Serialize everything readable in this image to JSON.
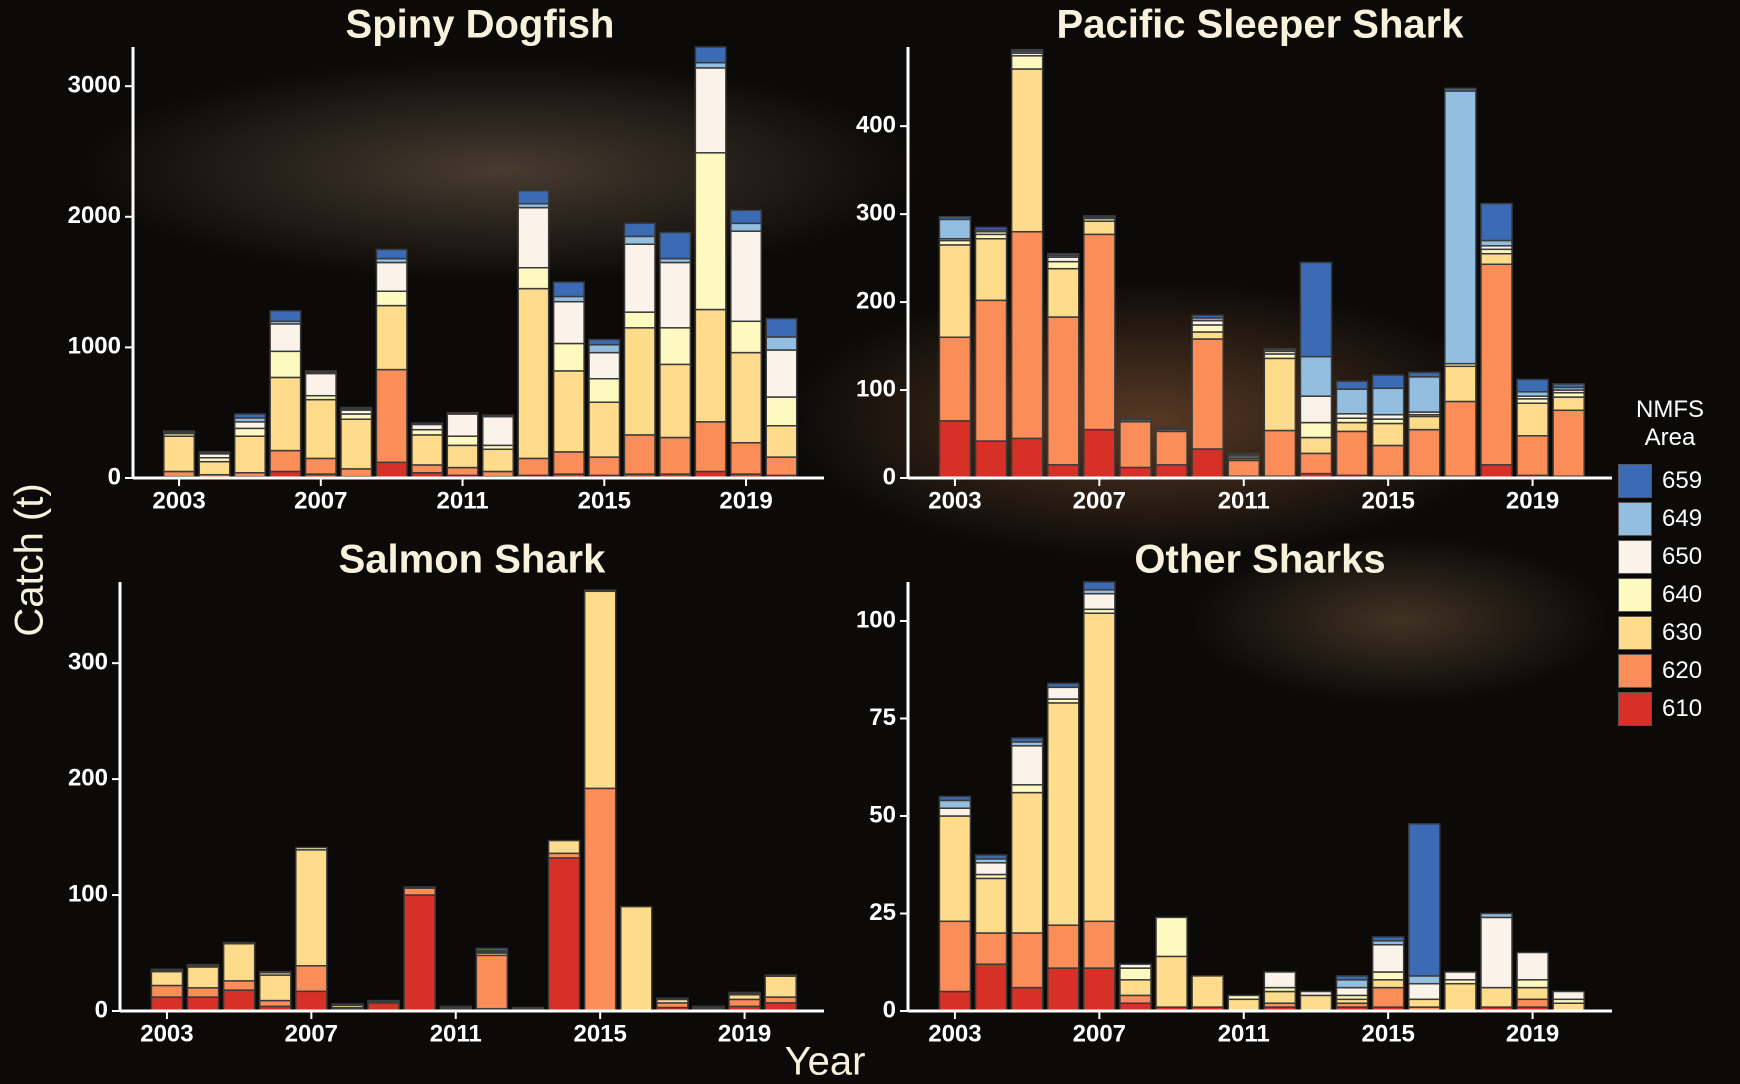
{
  "y_label": "Catch (t)",
  "x_label": "Year",
  "legend_title": "NMFS Area",
  "chart_data": [
    {
      "type": "bar",
      "stacked": true,
      "title": "Spiny Dogfish",
      "x": [
        2003,
        2004,
        2005,
        2006,
        2007,
        2008,
        2009,
        2010,
        2011,
        2012,
        2013,
        2014,
        2015,
        2016,
        2017,
        2018,
        2019,
        2020
      ],
      "xlim": [
        2001.7,
        2021.2
      ],
      "xticks": [
        2003,
        2007,
        2011,
        2015,
        2019
      ],
      "ylim": [
        0,
        3300
      ],
      "yticks": [
        0,
        1000,
        2000,
        3000
      ],
      "series": [
        {
          "name": "610",
          "color": "#d73027",
          "values": [
            10,
            5,
            10,
            50,
            30,
            10,
            120,
            40,
            20,
            10,
            20,
            30,
            20,
            30,
            30,
            50,
            30,
            20
          ]
        },
        {
          "name": "620",
          "color": "#fb8d59",
          "values": [
            40,
            20,
            30,
            160,
            120,
            60,
            710,
            60,
            60,
            40,
            130,
            170,
            140,
            300,
            280,
            380,
            240,
            140
          ]
        },
        {
          "name": "630",
          "color": "#fedc8b",
          "values": [
            270,
            100,
            280,
            560,
            450,
            380,
            490,
            230,
            170,
            170,
            1300,
            620,
            420,
            820,
            560,
            860,
            690,
            240
          ]
        },
        {
          "name": "640",
          "color": "#fef9bf",
          "values": [
            20,
            30,
            60,
            200,
            30,
            40,
            110,
            40,
            70,
            30,
            160,
            210,
            180,
            120,
            280,
            1200,
            240,
            220
          ]
        },
        {
          "name": "650",
          "color": "#fbf3ea",
          "values": [
            10,
            30,
            50,
            210,
            170,
            30,
            220,
            40,
            170,
            220,
            460,
            320,
            200,
            520,
            500,
            650,
            690,
            360
          ]
        },
        {
          "name": "649",
          "color": "#92bfe0",
          "values": [
            5,
            10,
            30,
            20,
            10,
            10,
            30,
            5,
            5,
            5,
            30,
            40,
            60,
            60,
            30,
            40,
            60,
            100
          ]
        },
        {
          "name": "659",
          "color": "#3b6bb5",
          "values": [
            5,
            5,
            30,
            80,
            10,
            10,
            70,
            5,
            5,
            5,
            100,
            110,
            40,
            100,
            200,
            120,
            100,
            140
          ]
        }
      ]
    },
    {
      "type": "bar",
      "stacked": true,
      "title": "Pacific Sleeper Shark",
      "x": [
        2003,
        2004,
        2005,
        2006,
        2007,
        2008,
        2009,
        2010,
        2011,
        2012,
        2013,
        2014,
        2015,
        2016,
        2017,
        2018,
        2019,
        2020
      ],
      "xlim": [
        2001.7,
        2021.2
      ],
      "xticks": [
        2003,
        2007,
        2011,
        2015,
        2019
      ],
      "ylim": [
        0,
        490
      ],
      "yticks": [
        0,
        100,
        200,
        300,
        400
      ],
      "series": [
        {
          "name": "610",
          "color": "#d73027",
          "values": [
            65,
            42,
            45,
            15,
            55,
            12,
            15,
            33,
            2,
            2,
            5,
            3,
            2,
            2,
            2,
            15,
            3,
            2
          ]
        },
        {
          "name": "620",
          "color": "#fb8d59",
          "values": [
            95,
            160,
            235,
            168,
            222,
            52,
            38,
            125,
            18,
            52,
            23,
            50,
            35,
            53,
            85,
            228,
            45,
            75
          ]
        },
        {
          "name": "630",
          "color": "#fedc8b",
          "values": [
            105,
            70,
            185,
            55,
            15,
            2,
            2,
            8,
            2,
            82,
            18,
            10,
            25,
            15,
            40,
            12,
            37,
            15
          ]
        },
        {
          "name": "640",
          "color": "#fef9bf",
          "values": [
            5,
            5,
            15,
            8,
            3,
            1,
            1,
            8,
            2,
            5,
            17,
            5,
            5,
            2,
            3,
            5,
            5,
            5
          ]
        },
        {
          "name": "650",
          "color": "#fbf3ea",
          "values": [
            2,
            3,
            3,
            5,
            1,
            1,
            1,
            5,
            2,
            3,
            30,
            5,
            5,
            3,
            0,
            4,
            3,
            3
          ]
        },
        {
          "name": "649",
          "color": "#92bfe0",
          "values": [
            22,
            2,
            2,
            2,
            1,
            0,
            0,
            3,
            1,
            2,
            45,
            28,
            30,
            40,
            310,
            6,
            5,
            3
          ]
        },
        {
          "name": "659",
          "color": "#3b6bb5",
          "values": [
            3,
            3,
            2,
            2,
            1,
            0,
            0,
            3,
            1,
            1,
            107,
            9,
            15,
            5,
            3,
            42,
            14,
            4
          ]
        }
      ]
    },
    {
      "type": "bar",
      "stacked": true,
      "title": "Salmon Shark",
      "x": [
        2003,
        2004,
        2005,
        2006,
        2007,
        2008,
        2009,
        2010,
        2011,
        2012,
        2013,
        2014,
        2015,
        2016,
        2017,
        2018,
        2019,
        2020
      ],
      "xlim": [
        2001.7,
        2021.2
      ],
      "xticks": [
        2003,
        2007,
        2011,
        2015,
        2019
      ],
      "ylim": [
        0,
        370
      ],
      "yticks": [
        0,
        100,
        200,
        300
      ],
      "series": [
        {
          "name": "610",
          "color": "#d73027",
          "values": [
            12,
            12,
            18,
            4,
            17,
            2,
            7,
            100,
            2,
            2,
            1,
            132,
            0,
            0,
            3,
            2,
            4,
            7
          ]
        },
        {
          "name": "620",
          "color": "#fb8d59",
          "values": [
            10,
            8,
            8,
            5,
            22,
            1,
            1,
            6,
            1,
            46,
            1,
            4,
            192,
            0,
            4,
            1,
            6,
            5
          ]
        },
        {
          "name": "630",
          "color": "#fedc8b",
          "values": [
            12,
            18,
            32,
            22,
            100,
            2,
            1,
            1,
            1,
            2,
            1,
            11,
            170,
            90,
            3,
            1,
            4,
            18
          ]
        },
        {
          "name": "640",
          "color": "#fef9bf",
          "values": [
            1,
            1,
            1,
            2,
            2,
            1,
            0,
            0,
            0,
            1,
            0,
            0,
            1,
            0,
            1,
            0,
            1,
            1
          ]
        },
        {
          "name": "650",
          "color": "#fbf3ea",
          "values": [
            1,
            1,
            0,
            1,
            0,
            0,
            0,
            0,
            0,
            1,
            0,
            0,
            0,
            0,
            0,
            0,
            1,
            0
          ]
        },
        {
          "name": "649",
          "color": "#92bfe0",
          "values": [
            0,
            0,
            0,
            0,
            0,
            0,
            0,
            0,
            0,
            0,
            0,
            0,
            0,
            0,
            0,
            0,
            0,
            0
          ]
        },
        {
          "name": "659",
          "color": "#3b6bb5",
          "values": [
            0,
            0,
            0,
            0,
            0,
            0,
            0,
            0,
            0,
            2,
            0,
            0,
            0,
            0,
            0,
            0,
            0,
            0
          ]
        }
      ]
    },
    {
      "type": "bar",
      "stacked": true,
      "title": "Other Sharks",
      "x": [
        2003,
        2004,
        2005,
        2006,
        2007,
        2008,
        2009,
        2010,
        2011,
        2012,
        2013,
        2014,
        2015,
        2016,
        2017,
        2018,
        2019,
        2020
      ],
      "xlim": [
        2001.7,
        2021.2
      ],
      "xticks": [
        2003,
        2007,
        2011,
        2015,
        2019
      ],
      "ylim": [
        0,
        110
      ],
      "yticks": [
        0,
        25,
        50,
        75,
        100
      ],
      "series": [
        {
          "name": "610",
          "color": "#d73027",
          "values": [
            5,
            12,
            6,
            11,
            11,
            2,
            1,
            1,
            0,
            1,
            0,
            1,
            1,
            0,
            0,
            1,
            1,
            0
          ]
        },
        {
          "name": "620",
          "color": "#fb8d59",
          "values": [
            18,
            8,
            14,
            11,
            12,
            2,
            0,
            0,
            0,
            1,
            0,
            1,
            5,
            1,
            0,
            0,
            2,
            0
          ]
        },
        {
          "name": "630",
          "color": "#fedc8b",
          "values": [
            27,
            14,
            36,
            57,
            79,
            4,
            13,
            8,
            3,
            3,
            4,
            1,
            2,
            2,
            7,
            5,
            3,
            2
          ]
        },
        {
          "name": "640",
          "color": "#fef9bf",
          "values": [
            0,
            1,
            2,
            1,
            1,
            3,
            10,
            0,
            1,
            1,
            0,
            1,
            2,
            0,
            1,
            0,
            2,
            1
          ]
        },
        {
          "name": "650",
          "color": "#fbf3ea",
          "values": [
            2,
            3,
            10,
            3,
            4,
            1,
            0,
            0,
            0,
            4,
            1,
            2,
            7,
            4,
            2,
            18,
            7,
            2
          ]
        },
        {
          "name": "649",
          "color": "#92bfe0",
          "values": [
            2,
            1,
            1,
            0,
            1,
            0,
            0,
            0,
            0,
            0,
            0,
            2,
            1,
            2,
            0,
            1,
            0,
            0
          ]
        },
        {
          "name": "659",
          "color": "#3b6bb5",
          "values": [
            1,
            1,
            1,
            1,
            2,
            0,
            0,
            0,
            0,
            0,
            0,
            1,
            1,
            39,
            0,
            0,
            0,
            0
          ]
        }
      ]
    }
  ]
}
